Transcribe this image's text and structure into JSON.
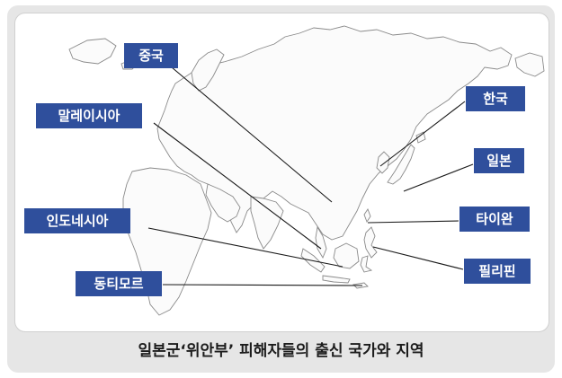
{
  "labels": {
    "china": "중국",
    "malaysia": "말레이시아",
    "indonesia": "인도네시아",
    "east_timor": "동티모르",
    "korea": "한국",
    "japan": "일본",
    "taiwan": "타이완",
    "philippines": "필리핀"
  },
  "caption": "일본군‘위안부’ 피해자들의 출신 국가와 지역",
  "colors": {
    "label_bg": "#2f4f9c",
    "label_text": "#ffffff",
    "frame_bg": "#e6e6e6",
    "map_outline": "#8a8a8a"
  }
}
